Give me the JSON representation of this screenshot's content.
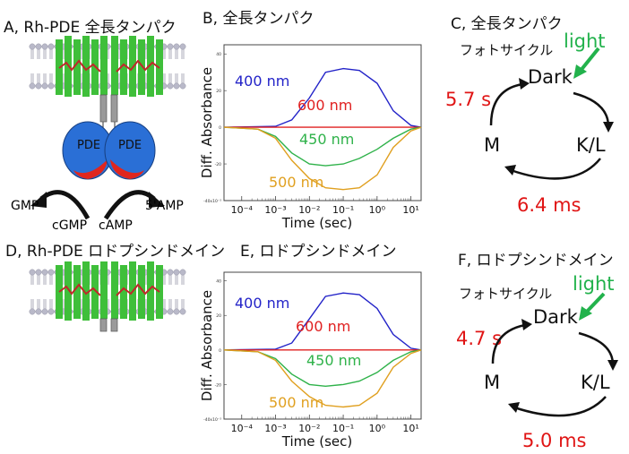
{
  "panels": {
    "a": "A, Rh-PDE 全長タンパク",
    "b": "B, 全長タンパク",
    "c": "C, 全長タンパク",
    "d": "D, Rh-PDE ロドプシンドメイン",
    "e": "E, ロドプシンドメイン",
    "f": "F, ロドプシンドメイン"
  },
  "schematic": {
    "pde_left": "PDE",
    "pde_right": "PDE",
    "gmp": "GMP",
    "cgmp": "cGMP",
    "camp": "cAMP",
    "amp5": "5'AMP"
  },
  "chart_data": [
    {
      "type": "line",
      "panel": "B",
      "xlabel": "Time (sec)",
      "ylabel": "Diff. Absorbance",
      "x_scale": "log",
      "x_ticks": [
        "10⁻⁴",
        "10⁻³",
        "10⁻²",
        "10⁻¹",
        "10⁰",
        "10¹"
      ],
      "xlim": [
        3e-05,
        20
      ],
      "ylim": [
        -40,
        45
      ],
      "y_ticks": [
        "40",
        "20",
        "0",
        "-20",
        "-40x10⁻³"
      ],
      "series": [
        {
          "name": "400 nm",
          "color": "#2323c8",
          "x": [
            3e-05,
            0.001,
            0.003,
            0.01,
            0.03,
            0.1,
            0.3,
            1,
            3,
            10,
            20
          ],
          "y": [
            0,
            0.5,
            4,
            16,
            30,
            32,
            31,
            24,
            9,
            1,
            0
          ]
        },
        {
          "name": "600 nm",
          "color": "#e02020",
          "x": [
            3e-05,
            0.001,
            0.01,
            0.1,
            1,
            10,
            20
          ],
          "y": [
            0,
            0,
            0,
            0,
            0,
            0,
            0
          ]
        },
        {
          "name": "450 nm",
          "color": "#2fb24a",
          "x": [
            3e-05,
            0.0003,
            0.001,
            0.003,
            0.01,
            0.03,
            0.1,
            0.3,
            1,
            3,
            10,
            20
          ],
          "y": [
            0,
            -1,
            -5,
            -14,
            -20,
            -21,
            -20,
            -17,
            -12,
            -6,
            -1,
            0
          ]
        },
        {
          "name": "500 nm",
          "color": "#e0a020",
          "x": [
            3e-05,
            0.0003,
            0.001,
            0.003,
            0.01,
            0.03,
            0.1,
            0.3,
            1,
            3,
            10,
            20
          ],
          "y": [
            0,
            -1,
            -6,
            -18,
            -28,
            -33,
            -34,
            -33,
            -26,
            -11,
            -2,
            0
          ]
        }
      ]
    },
    {
      "type": "line",
      "panel": "E",
      "xlabel": "Time (sec)",
      "ylabel": "Diff. Absorbance",
      "x_scale": "log",
      "x_ticks": [
        "10⁻⁴",
        "10⁻³",
        "10⁻²",
        "10⁻¹",
        "10⁰",
        "10¹"
      ],
      "xlim": [
        3e-05,
        20
      ],
      "ylim": [
        -40,
        45
      ],
      "y_ticks": [
        "40",
        "20",
        "0",
        "-20",
        "-40x10⁻³"
      ],
      "series": [
        {
          "name": "400 nm",
          "color": "#2323c8",
          "x": [
            3e-05,
            0.001,
            0.003,
            0.01,
            0.03,
            0.1,
            0.3,
            1,
            3,
            10,
            20
          ],
          "y": [
            0,
            0.5,
            4,
            18,
            31,
            33,
            32,
            24,
            9,
            1,
            0
          ]
        },
        {
          "name": "600 nm",
          "color": "#e02020",
          "x": [
            3e-05,
            0.001,
            0.01,
            0.1,
            1,
            10,
            20
          ],
          "y": [
            0,
            0,
            0,
            0,
            0,
            0,
            0
          ]
        },
        {
          "name": "450 nm",
          "color": "#2fb24a",
          "x": [
            3e-05,
            0.0003,
            0.001,
            0.003,
            0.01,
            0.03,
            0.1,
            0.3,
            1,
            3,
            10,
            20
          ],
          "y": [
            0,
            -1,
            -5,
            -14,
            -20,
            -21,
            -20,
            -18,
            -13,
            -6,
            -1,
            0
          ]
        },
        {
          "name": "500 nm",
          "color": "#e0a020",
          "x": [
            3e-05,
            0.0003,
            0.001,
            0.003,
            0.01,
            0.03,
            0.1,
            0.3,
            1,
            3,
            10,
            20
          ],
          "y": [
            0,
            -1,
            -6,
            -18,
            -27,
            -32,
            -33,
            -32,
            -25,
            -10,
            -2,
            0
          ]
        }
      ]
    }
  ],
  "cycles": {
    "c": {
      "title": "フォトサイクル",
      "light": "light",
      "dark": "Dark",
      "k_l": "K/L",
      "m": "M",
      "time_left": "5.7 s",
      "time_bottom": "6.4 ms"
    },
    "f": {
      "title": "フォトサイクル",
      "light": "light",
      "dark": "Dark",
      "k_l": "K/L",
      "m": "M",
      "time_left": "4.7 s",
      "time_bottom": "5.0 ms"
    }
  },
  "colors": {
    "time_red": "#e01515",
    "light_green": "#22b24c",
    "helix_green": "#3fbf3a",
    "pde_blue": "#2a6fd6",
    "pde_red": "#e0261e"
  }
}
